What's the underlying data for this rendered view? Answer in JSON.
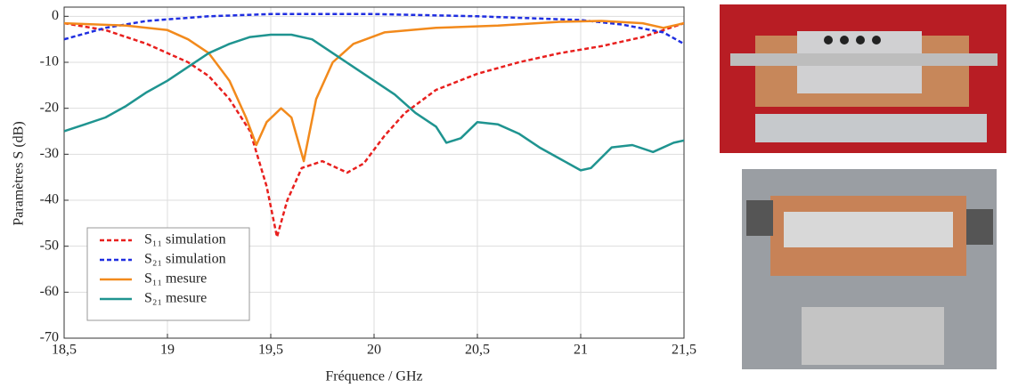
{
  "chart_data": {
    "type": "line",
    "xlabel": "Fréquence / GHz",
    "ylabel": "Paramètres S (dB)",
    "xlim": [
      18.5,
      21.5
    ],
    "ylim": [
      -70,
      2
    ],
    "xticks": [
      {
        "value": 18.5,
        "label": "18,5"
      },
      19,
      {
        "value": 19.5,
        "label": "19,5"
      },
      20,
      {
        "value": 20.5,
        "label": "20,5"
      },
      21,
      {
        "value": 21.5,
        "label": "21,5"
      }
    ],
    "yticks": [
      0,
      -10,
      -20,
      -30,
      -40,
      -50,
      -60,
      -70
    ],
    "grid": true,
    "legend": "lower left",
    "series": [
      {
        "name": "S₁₁ simulation",
        "color": "#e8201e",
        "linestyle": "dashed",
        "x": [
          18.5,
          18.7,
          18.9,
          19.1,
          19.2,
          19.3,
          19.4,
          19.48,
          19.53,
          19.58,
          19.65,
          19.75,
          19.87,
          19.95,
          20.05,
          20.15,
          20.3,
          20.5,
          20.7,
          20.9,
          21.1,
          21.3,
          21.5
        ],
        "values": [
          -1.5,
          -3,
          -6,
          -10,
          -13,
          -18,
          -25,
          -37,
          -48,
          -40,
          -33,
          -31.5,
          -34,
          -32,
          -26,
          -21,
          -16,
          -12.5,
          -10,
          -8,
          -6.5,
          -4.5,
          -1.5
        ]
      },
      {
        "name": "S₂₁ simulation",
        "color": "#1f2ee0",
        "linestyle": "dashed",
        "x": [
          18.5,
          18.7,
          18.9,
          19.2,
          19.5,
          20,
          20.5,
          21,
          21.2,
          21.4,
          21.5
        ],
        "values": [
          -5,
          -2.5,
          -1,
          0,
          0.5,
          0.5,
          0,
          -0.8,
          -1.8,
          -3.5,
          -6
        ]
      },
      {
        "name": "S₁₁ mesure",
        "color": "#f28a1c",
        "linestyle": "solid",
        "x": [
          18.5,
          18.8,
          19.0,
          19.1,
          19.2,
          19.3,
          19.38,
          19.43,
          19.48,
          19.55,
          19.6,
          19.66,
          19.72,
          19.8,
          19.9,
          20.05,
          20.3,
          20.6,
          20.9,
          21.1,
          21.3,
          21.4,
          21.5
        ],
        "values": [
          -1.5,
          -2,
          -3,
          -5,
          -8,
          -14,
          -22,
          -28,
          -23,
          -20,
          -22,
          -31.5,
          -18,
          -10,
          -6,
          -3.5,
          -2.5,
          -2,
          -1.2,
          -1,
          -1.5,
          -2.5,
          -1.5
        ]
      },
      {
        "name": "S₂₁ mesure",
        "color": "#1f9490",
        "linestyle": "solid",
        "x": [
          18.5,
          18.6,
          18.7,
          18.8,
          18.9,
          19.0,
          19.1,
          19.2,
          19.3,
          19.4,
          19.5,
          19.6,
          19.7,
          19.8,
          19.9,
          20.0,
          20.1,
          20.2,
          20.3,
          20.35,
          20.42,
          20.5,
          20.6,
          20.7,
          20.8,
          20.9,
          21.0,
          21.05,
          21.15,
          21.25,
          21.35,
          21.45,
          21.5
        ],
        "values": [
          -25,
          -23.5,
          -22,
          -19.5,
          -16.5,
          -14,
          -11,
          -8,
          -6,
          -4.5,
          -4,
          -4,
          -5,
          -8,
          -11,
          -14,
          -17,
          -21,
          -24,
          -27.5,
          -26.5,
          -23,
          -23.5,
          -25.5,
          -28.5,
          -31,
          -33.5,
          -33,
          -28.5,
          -28,
          -29.5,
          -27.5,
          -27
        ]
      }
    ]
  }
}
